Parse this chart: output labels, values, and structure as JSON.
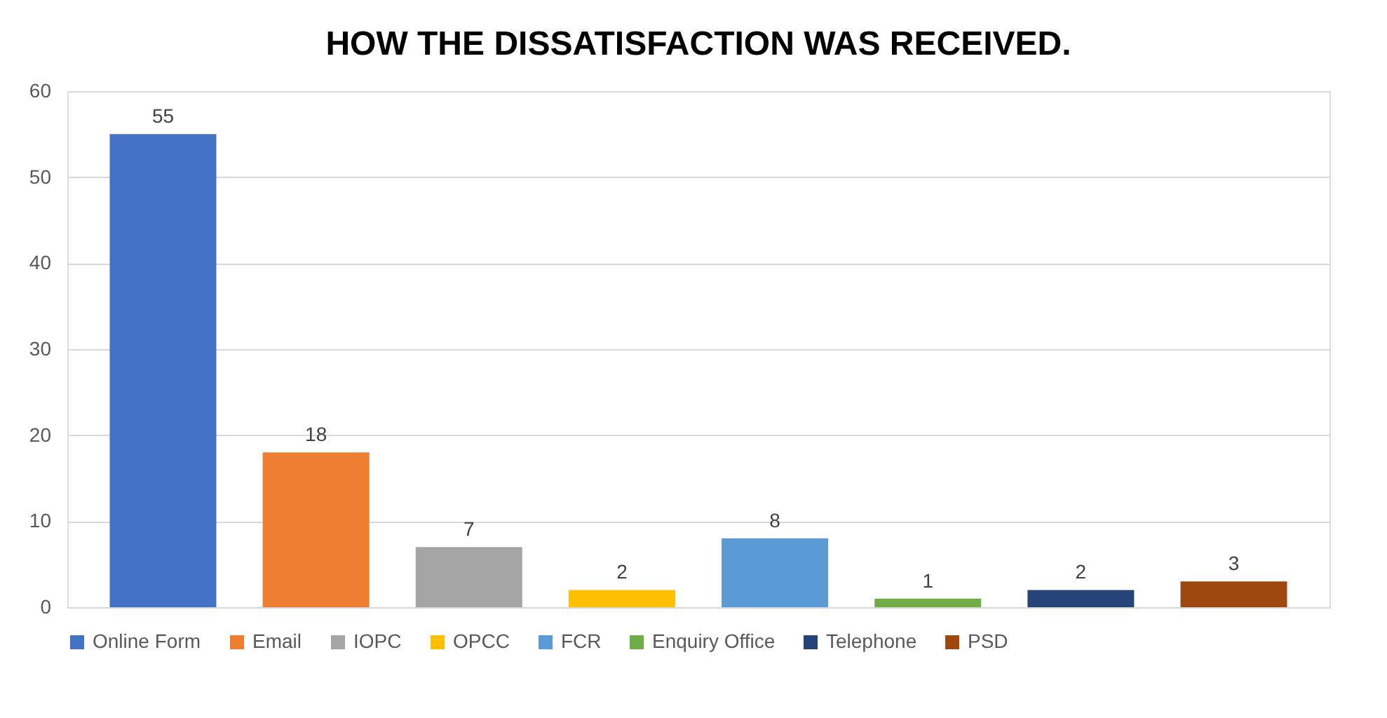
{
  "chart_data": {
    "type": "bar",
    "title": "HOW THE DISSATISFACTION WAS RECEIVED.",
    "categories": [
      null
    ],
    "series": [
      {
        "name": "Online Form",
        "color": "#4472c4",
        "values": [
          55
        ]
      },
      {
        "name": "Email",
        "color": "#ed7d31",
        "values": [
          18
        ]
      },
      {
        "name": "IOPC",
        "color": "#a5a5a5",
        "values": [
          7
        ]
      },
      {
        "name": "OPCC",
        "color": "#ffc000",
        "values": [
          2
        ]
      },
      {
        "name": "FCR",
        "color": "#5b9bd5",
        "values": [
          8
        ]
      },
      {
        "name": "Enquiry Office",
        "color": "#70ad47",
        "values": [
          1
        ]
      },
      {
        "name": "Telephone",
        "color": "#264478",
        "values": [
          2
        ]
      },
      {
        "name": "PSD",
        "color": "#9e480e",
        "values": [
          3
        ]
      }
    ],
    "ylim": [
      0,
      60
    ],
    "yticks": [
      0,
      10,
      20,
      30,
      40,
      50,
      60
    ],
    "grid": "y",
    "legend": "bottom",
    "tick_labels": "y",
    "data_labels": true
  }
}
